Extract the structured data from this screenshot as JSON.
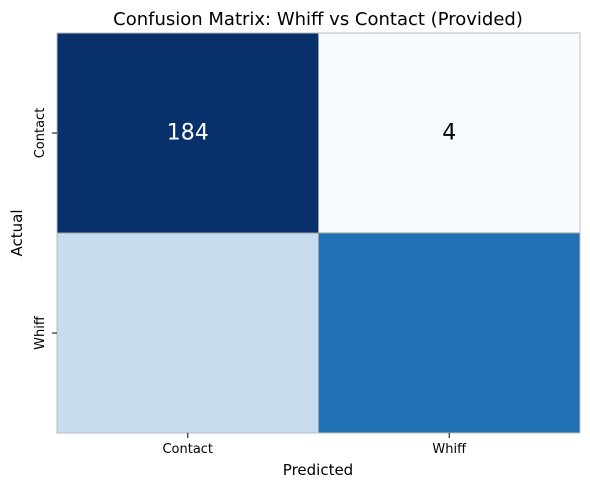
{
  "chart_data": {
    "type": "heatmap",
    "title": "Confusion Matrix: Whiff vs Contact (Provided)",
    "xlabel": "Predicted",
    "ylabel": "Actual",
    "x_categories": [
      "Contact",
      "Whiff"
    ],
    "y_categories": [
      "Contact",
      "Whiff"
    ],
    "values": [
      [
        184,
        4
      ],
      [
        null,
        null
      ]
    ],
    "cell_labels": [
      [
        "184",
        "4"
      ],
      [
        "",
        ""
      ]
    ],
    "cell_colors": [
      [
        "#08306b",
        "#f7fbff"
      ],
      [
        "#c8dcf0",
        "#2171b5"
      ]
    ],
    "label_colors": [
      [
        "#ffffff",
        "#000000"
      ],
      [
        "#000000",
        "#ffffff"
      ]
    ],
    "colormap": "Blues",
    "grid": false,
    "colorbar": false
  }
}
